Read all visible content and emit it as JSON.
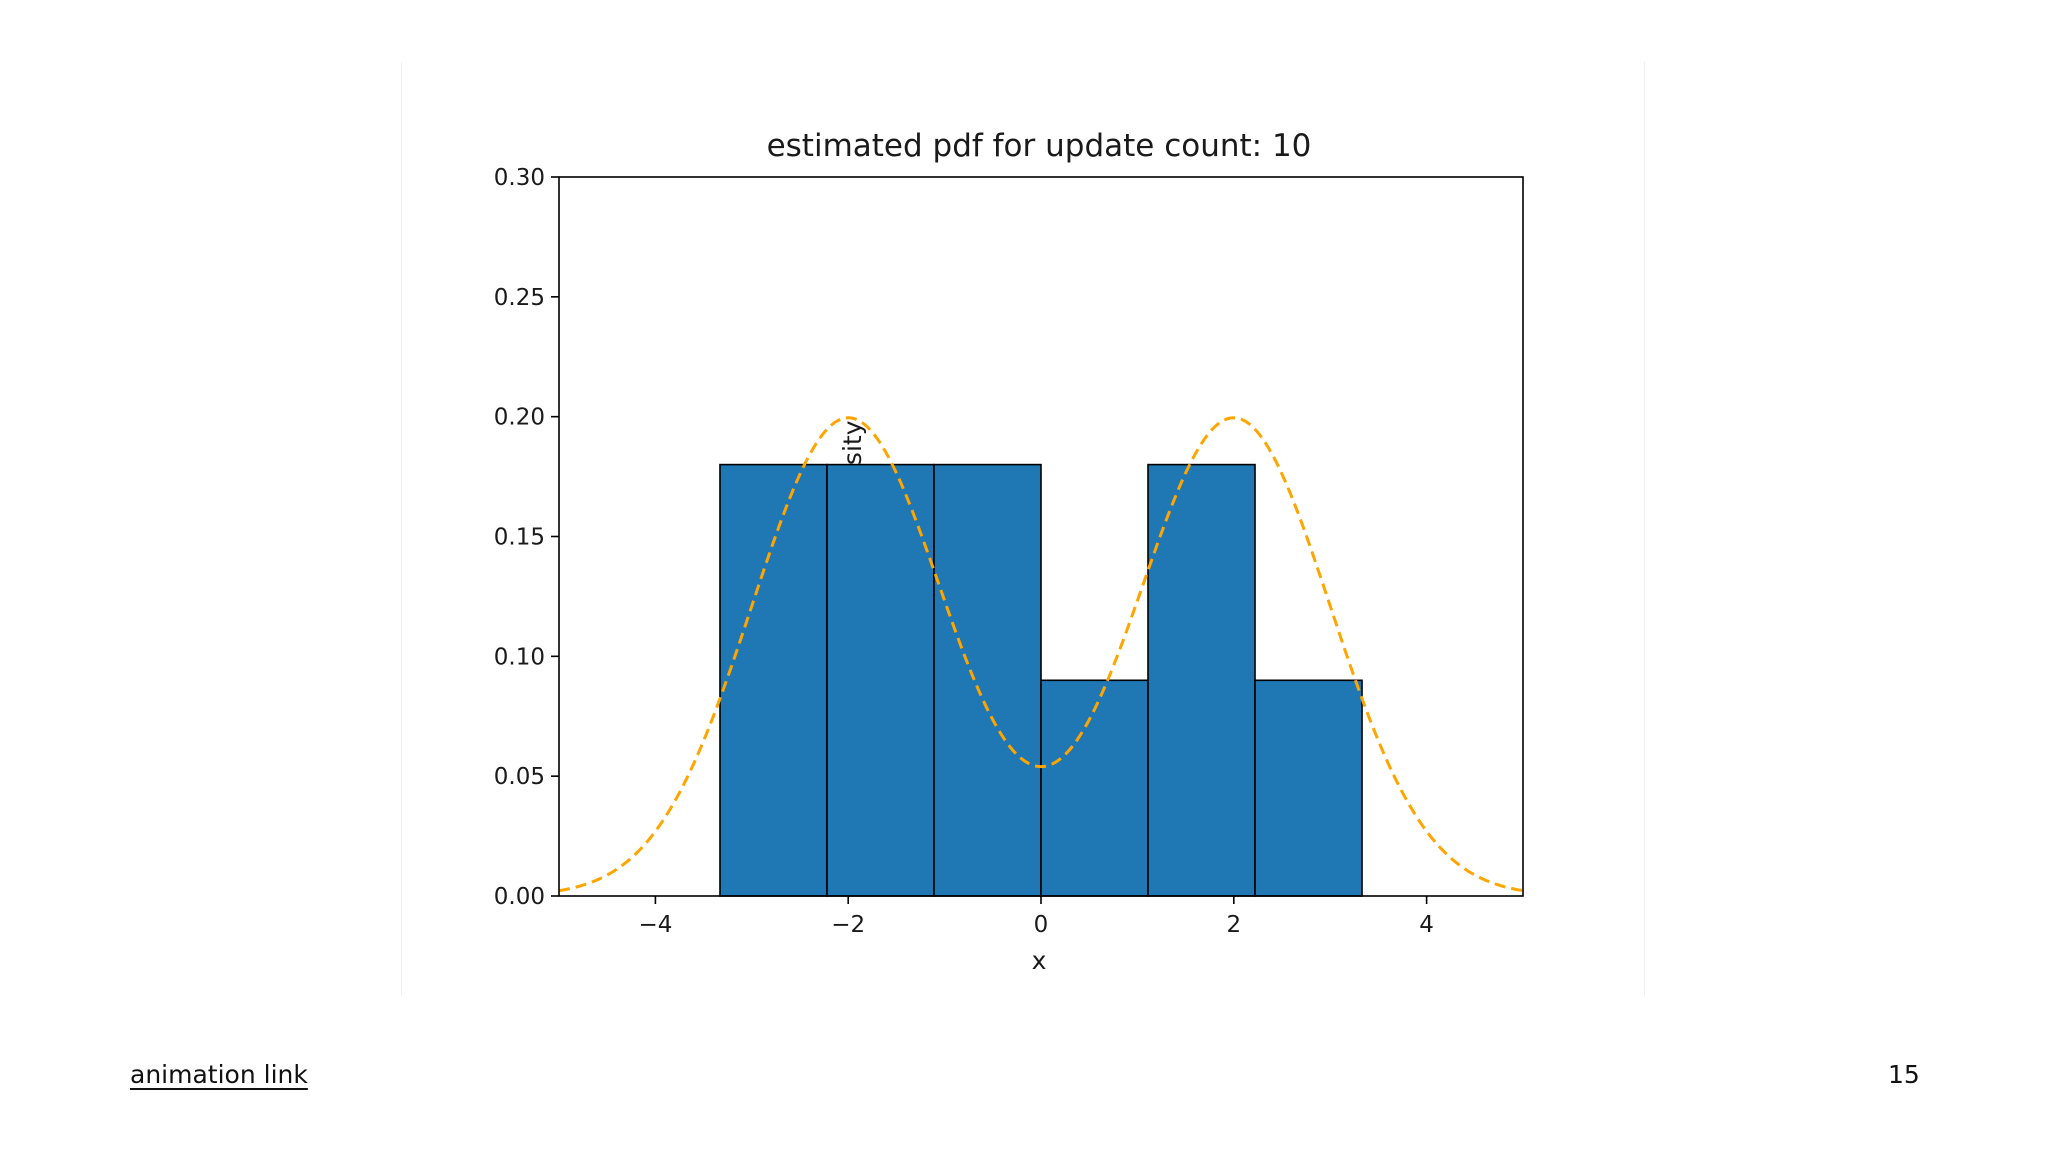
{
  "footer": {
    "link_label": "animation link",
    "page_number": "15"
  },
  "chart_data": {
    "type": "bar",
    "title": "estimated pdf for update count: 10",
    "xlabel": "x",
    "ylabel": "probability density",
    "xlim": [
      -5,
      5
    ],
    "ylim": [
      0,
      0.3
    ],
    "xticks": [
      -4,
      -2,
      0,
      2,
      4
    ],
    "xtick_labels": [
      "−4",
      "−2",
      "0",
      "2",
      "4"
    ],
    "yticks": [
      0.0,
      0.05,
      0.1,
      0.15,
      0.2,
      0.25,
      0.3
    ],
    "ytick_labels": [
      "0.00",
      "0.05",
      "0.10",
      "0.15",
      "0.20",
      "0.25",
      "0.30"
    ],
    "grid": false,
    "histogram": {
      "bin_edges": [
        -3.33,
        -2.22,
        -1.11,
        0.0,
        1.11,
        2.22,
        3.33
      ],
      "values": [
        0.18,
        0.18,
        0.18,
        0.09,
        0.18,
        0.09
      ],
      "color": "#1f77b4",
      "edgecolor": "#000000"
    },
    "curve": {
      "kind": "mixture of two normals",
      "means": [
        -2,
        2
      ],
      "sigma": 1,
      "weights": [
        0.5,
        0.5
      ],
      "peak": 0.2,
      "color": "#ffa500",
      "style": "dashed"
    }
  }
}
